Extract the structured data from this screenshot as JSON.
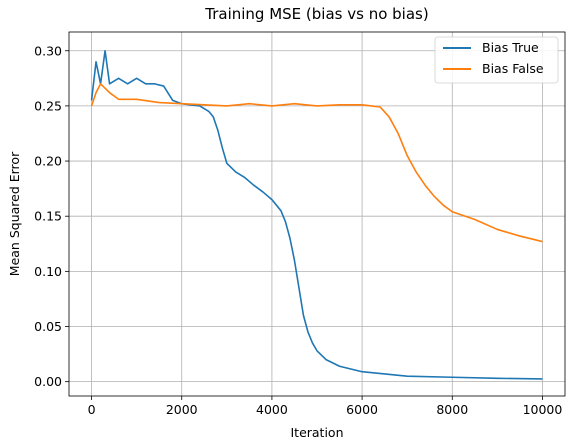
{
  "chart_data": {
    "type": "line",
    "title": "Training MSE (bias vs no bias)",
    "xlabel": "Iteration",
    "ylabel": "Mean Squared Error",
    "xlim": [
      -500,
      10500
    ],
    "ylim": [
      -0.013,
      0.317
    ],
    "xticks": [
      0,
      2000,
      4000,
      6000,
      8000,
      10000
    ],
    "xtick_labels": [
      "0",
      "2000",
      "4000",
      "6000",
      "8000",
      "10000"
    ],
    "yticks": [
      0.0,
      0.05,
      0.1,
      0.15,
      0.2,
      0.25,
      0.3
    ],
    "ytick_labels": [
      "0.00",
      "0.05",
      "0.10",
      "0.15",
      "0.20",
      "0.25",
      "0.30"
    ],
    "grid": true,
    "legend_position": "top-right",
    "series": [
      {
        "name": "Bias True",
        "color": "#1f77b4",
        "x": [
          0,
          100,
          200,
          300,
          400,
          600,
          800,
          1000,
          1200,
          1400,
          1600,
          1800,
          2000,
          2200,
          2400,
          2600,
          2700,
          2800,
          2900,
          3000,
          3200,
          3400,
          3600,
          3800,
          4000,
          4200,
          4300,
          4400,
          4500,
          4600,
          4700,
          4800,
          4900,
          5000,
          5200,
          5500,
          6000,
          6500,
          7000,
          8000,
          9000,
          10000
        ],
        "y": [
          0.255,
          0.29,
          0.27,
          0.3,
          0.27,
          0.275,
          0.27,
          0.275,
          0.27,
          0.27,
          0.268,
          0.255,
          0.252,
          0.251,
          0.25,
          0.245,
          0.24,
          0.228,
          0.212,
          0.198,
          0.19,
          0.185,
          0.178,
          0.172,
          0.165,
          0.155,
          0.145,
          0.13,
          0.11,
          0.085,
          0.06,
          0.045,
          0.035,
          0.028,
          0.02,
          0.014,
          0.009,
          0.007,
          0.005,
          0.004,
          0.003,
          0.0025
        ]
      },
      {
        "name": "Bias False",
        "color": "#ff7f0e",
        "x": [
          0,
          100,
          200,
          400,
          600,
          800,
          1000,
          1500,
          2000,
          2500,
          3000,
          3500,
          4000,
          4500,
          5000,
          5500,
          6000,
          6200,
          6400,
          6600,
          6800,
          7000,
          7200,
          7400,
          7600,
          7800,
          8000,
          8500,
          9000,
          9500,
          10000
        ],
        "y": [
          0.25,
          0.262,
          0.27,
          0.262,
          0.256,
          0.256,
          0.256,
          0.253,
          0.252,
          0.251,
          0.25,
          0.252,
          0.25,
          0.252,
          0.25,
          0.251,
          0.251,
          0.25,
          0.249,
          0.24,
          0.225,
          0.205,
          0.19,
          0.178,
          0.168,
          0.16,
          0.154,
          0.147,
          0.138,
          0.132,
          0.127
        ]
      }
    ]
  }
}
